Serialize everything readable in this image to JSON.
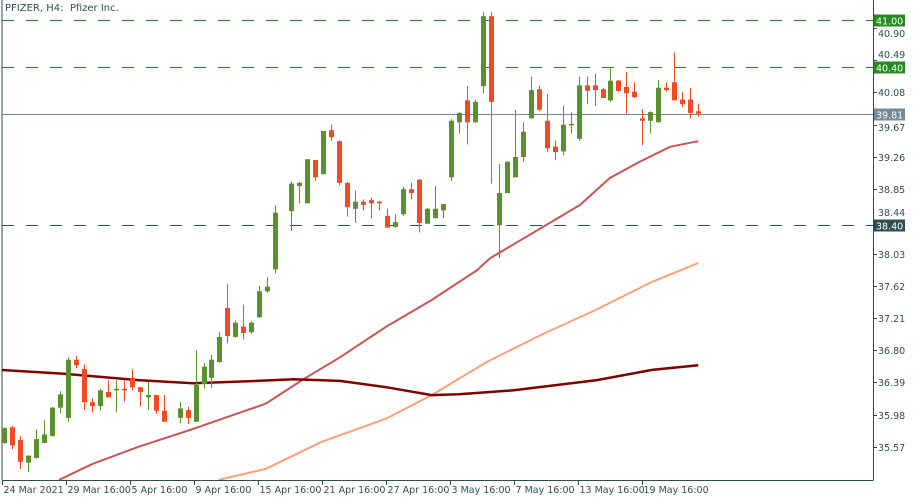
{
  "header": {
    "title": "PFIZER, H4:  Pfizer Inc."
  },
  "colors": {
    "bull": "#5b9030",
    "bear": "#f24b23",
    "axis": "#2f4f4f",
    "ma_fast": "#c85456",
    "ma_mid": "#ffa07a",
    "ma_slow": "#800000",
    "level_green": "#228b22",
    "level_dark": "#2f4f4f",
    "price_line": "#778899"
  },
  "chart_data": {
    "type": "candlestick",
    "symbol": "PFIZER",
    "timeframe": "H4",
    "ylim": [
      35.37,
      41.07
    ],
    "y_ticks": [
      "40.90",
      "40.49",
      "40.08",
      "39.67",
      "39.26",
      "38.85",
      "38.44",
      "38.03",
      "37.62",
      "37.21",
      "36.80",
      "36.39",
      "35.98",
      "35.57"
    ],
    "x_labels": [
      "24 Mar 2021",
      "29 Mar 16:00",
      "5 Apr 16:00",
      "9 Apr 16:00",
      "15 Apr 16:00",
      "21 Apr 16:00",
      "27 Apr 16:00",
      "3 May 16:00",
      "7 May 16:00",
      "13 May 16:00",
      "19 May 16:00"
    ],
    "candles_ohlc": [
      [
        35.62,
        35.82,
        35.61,
        35.81
      ],
      [
        35.82,
        35.84,
        35.54,
        35.59
      ],
      [
        35.66,
        35.71,
        35.29,
        35.38
      ],
      [
        35.37,
        35.46,
        35.25,
        35.46
      ],
      [
        35.43,
        35.79,
        35.42,
        35.67
      ],
      [
        35.62,
        35.91,
        35.62,
        35.73
      ],
      [
        35.71,
        36.08,
        35.7,
        36.07
      ],
      [
        36.07,
        36.28,
        36.0,
        36.24
      ],
      [
        35.94,
        36.71,
        35.89,
        36.68
      ],
      [
        36.68,
        36.73,
        36.57,
        36.61
      ],
      [
        36.56,
        36.62,
        36.04,
        36.14
      ],
      [
        36.14,
        36.19,
        36.01,
        36.09
      ],
      [
        36.09,
        36.31,
        36.03,
        36.29
      ],
      [
        36.27,
        36.42,
        36.2,
        36.2
      ],
      [
        36.29,
        36.42,
        36.01,
        36.31
      ],
      [
        36.31,
        36.42,
        36.15,
        36.29
      ],
      [
        36.45,
        36.56,
        36.29,
        36.33
      ],
      [
        36.33,
        36.33,
        36.09,
        36.27
      ],
      [
        36.2,
        36.4,
        36.04,
        36.23
      ],
      [
        36.23,
        36.23,
        35.99,
        36.03
      ],
      [
        36.03,
        36.23,
        35.89,
        35.89
      ],
      null,
      [
        35.94,
        36.14,
        35.87,
        36.06
      ],
      [
        36.04,
        36.08,
        35.86,
        35.94
      ],
      [
        35.89,
        36.8,
        35.89,
        36.36
      ],
      [
        36.37,
        36.64,
        36.31,
        36.59
      ],
      [
        36.45,
        36.74,
        36.32,
        36.68
      ],
      [
        36.65,
        37.03,
        36.64,
        36.97
      ],
      [
        37.34,
        37.64,
        36.89,
        36.98
      ],
      [
        36.97,
        37.18,
        36.96,
        37.15
      ],
      [
        37.1,
        37.38,
        36.94,
        37.02
      ],
      [
        37.03,
        37.17,
        37.01,
        37.15
      ],
      [
        37.22,
        37.62,
        37.21,
        37.55
      ],
      [
        37.55,
        37.73,
        37.53,
        37.61
      ],
      [
        37.83,
        38.64,
        37.78,
        38.55
      ],
      null,
      [
        38.57,
        38.95,
        38.32,
        38.92
      ],
      [
        38.89,
        38.94,
        38.67,
        38.93
      ],
      [
        38.67,
        39.23,
        38.67,
        39.23
      ],
      [
        39.22,
        39.22,
        38.95,
        39.0
      ],
      [
        39.04,
        39.59,
        39.04,
        39.59
      ],
      [
        39.6,
        39.67,
        39.46,
        39.51
      ],
      [
        39.46,
        39.47,
        38.9,
        38.93
      ],
      [
        38.93,
        38.94,
        38.5,
        38.62
      ],
      [
        38.6,
        38.83,
        38.42,
        38.69
      ],
      [
        38.69,
        38.72,
        38.58,
        38.65
      ],
      [
        38.71,
        38.74,
        38.48,
        38.67
      ],
      [
        38.69,
        38.7,
        38.58,
        38.67
      ],
      [
        38.51,
        38.6,
        38.36,
        38.36
      ],
      [
        38.37,
        38.53,
        38.36,
        38.43
      ],
      [
        38.53,
        38.88,
        38.51,
        38.85
      ],
      [
        38.85,
        38.93,
        38.72,
        38.8
      ],
      [
        38.97,
        38.98,
        38.3,
        38.42
      ],
      [
        38.41,
        38.61,
        38.41,
        38.6
      ],
      [
        38.48,
        38.89,
        38.48,
        38.6
      ],
      [
        38.58,
        38.66,
        38.48,
        38.66
      ],
      [
        39.0,
        39.74,
        38.95,
        39.72
      ],
      [
        39.7,
        39.83,
        39.56,
        39.82
      ],
      [
        39.98,
        40.16,
        39.42,
        39.7
      ],
      [
        39.7,
        39.99,
        39.7,
        39.96
      ],
      [
        40.16,
        41.1,
        40.07,
        41.05
      ],
      [
        41.05,
        41.1,
        38.92,
        39.96
      ],
      [
        38.39,
        39.17,
        37.97,
        38.8
      ],
      [
        38.8,
        39.2,
        38.8,
        39.2
      ],
      [
        39.0,
        39.86,
        39.0,
        39.26
      ],
      [
        39.26,
        39.7,
        39.2,
        39.58
      ],
      [
        39.75,
        40.28,
        39.75,
        40.11
      ],
      [
        40.12,
        40.17,
        39.84,
        39.86
      ],
      [
        39.72,
        40.06,
        39.32,
        39.37
      ],
      [
        39.39,
        39.47,
        39.22,
        39.32
      ],
      [
        39.33,
        39.91,
        39.28,
        39.67
      ],
      [
        39.67,
        39.83,
        39.56,
        39.68
      ],
      [
        39.49,
        40.28,
        39.46,
        40.17
      ],
      [
        40.17,
        40.28,
        39.93,
        40.1
      ],
      [
        40.17,
        40.32,
        39.91,
        40.11
      ],
      [
        40.12,
        40.14,
        40.01,
        40.01
      ],
      [
        39.98,
        40.39,
        39.96,
        40.23
      ],
      [
        40.23,
        40.24,
        40.09,
        40.1
      ],
      [
        40.15,
        40.34,
        39.81,
        40.07
      ],
      [
        40.09,
        40.21,
        40.01,
        40.02
      ],
      [
        39.75,
        39.87,
        39.41,
        39.72
      ],
      [
        39.72,
        39.84,
        39.56,
        39.83
      ],
      [
        39.7,
        40.24,
        39.7,
        40.14
      ],
      [
        40.14,
        40.21,
        40.09,
        40.11
      ],
      [
        40.21,
        40.59,
        39.98,
        39.98
      ],
      [
        39.99,
        40.09,
        39.89,
        39.93
      ],
      [
        39.99,
        40.14,
        39.75,
        39.82
      ],
      [
        39.84,
        39.94,
        39.77,
        39.81
      ]
    ],
    "moving_averages": [
      {
        "color": "#c85456",
        "points_bar_price": [
          [
            6.9,
            35.15
          ],
          [
            11,
            35.35
          ],
          [
            16.8,
            35.57
          ],
          [
            23.7,
            35.8
          ],
          [
            29.4,
            36.0
          ],
          [
            32.8,
            36.12
          ],
          [
            37.5,
            36.43
          ],
          [
            42.1,
            36.71
          ],
          [
            47.9,
            37.1
          ],
          [
            53.6,
            37.44
          ],
          [
            59.3,
            37.82
          ],
          [
            60.9,
            37.97
          ],
          [
            68.4,
            38.42
          ],
          [
            72.2,
            38.65
          ],
          [
            75.9,
            38.99
          ],
          [
            79.7,
            39.2
          ],
          [
            83.5,
            39.39
          ],
          [
            87,
            39.46
          ]
        ]
      },
      {
        "color": "#ffa07a",
        "points_bar_price": [
          [
            26.9,
            35.15
          ],
          [
            32.8,
            35.29
          ],
          [
            39.7,
            35.63
          ],
          [
            47.9,
            35.93
          ],
          [
            53.6,
            36.23
          ],
          [
            60.5,
            36.65
          ],
          [
            67.4,
            37.0
          ],
          [
            74.3,
            37.32
          ],
          [
            81.2,
            37.67
          ],
          [
            87,
            37.91
          ]
        ]
      },
      {
        "color": "#800000",
        "points_bar_price": [
          [
            -0.5,
            36.55
          ],
          [
            7.5,
            36.5
          ],
          [
            16.8,
            36.42
          ],
          [
            23.7,
            36.38
          ],
          [
            31.7,
            36.41
          ],
          [
            36.3,
            36.43
          ],
          [
            42.1,
            36.41
          ],
          [
            47.9,
            36.33
          ],
          [
            53.6,
            36.23
          ],
          [
            57,
            36.24
          ],
          [
            63.9,
            36.29
          ],
          [
            74.3,
            36.42
          ],
          [
            81.2,
            36.55
          ],
          [
            87,
            36.61
          ]
        ]
      }
    ],
    "levels": [
      {
        "price": 41.0,
        "label": "41.00",
        "style": "dashed",
        "color": "#228b22"
      },
      {
        "price": 40.4,
        "label": "40.40",
        "style": "dashed",
        "color": "#228b22"
      },
      {
        "price": 38.4,
        "label": "38.40",
        "style": "dashed",
        "color": "#2f4f4f"
      },
      {
        "price": 39.81,
        "label": "39.81",
        "style": "solid",
        "color": "#778899"
      }
    ]
  }
}
